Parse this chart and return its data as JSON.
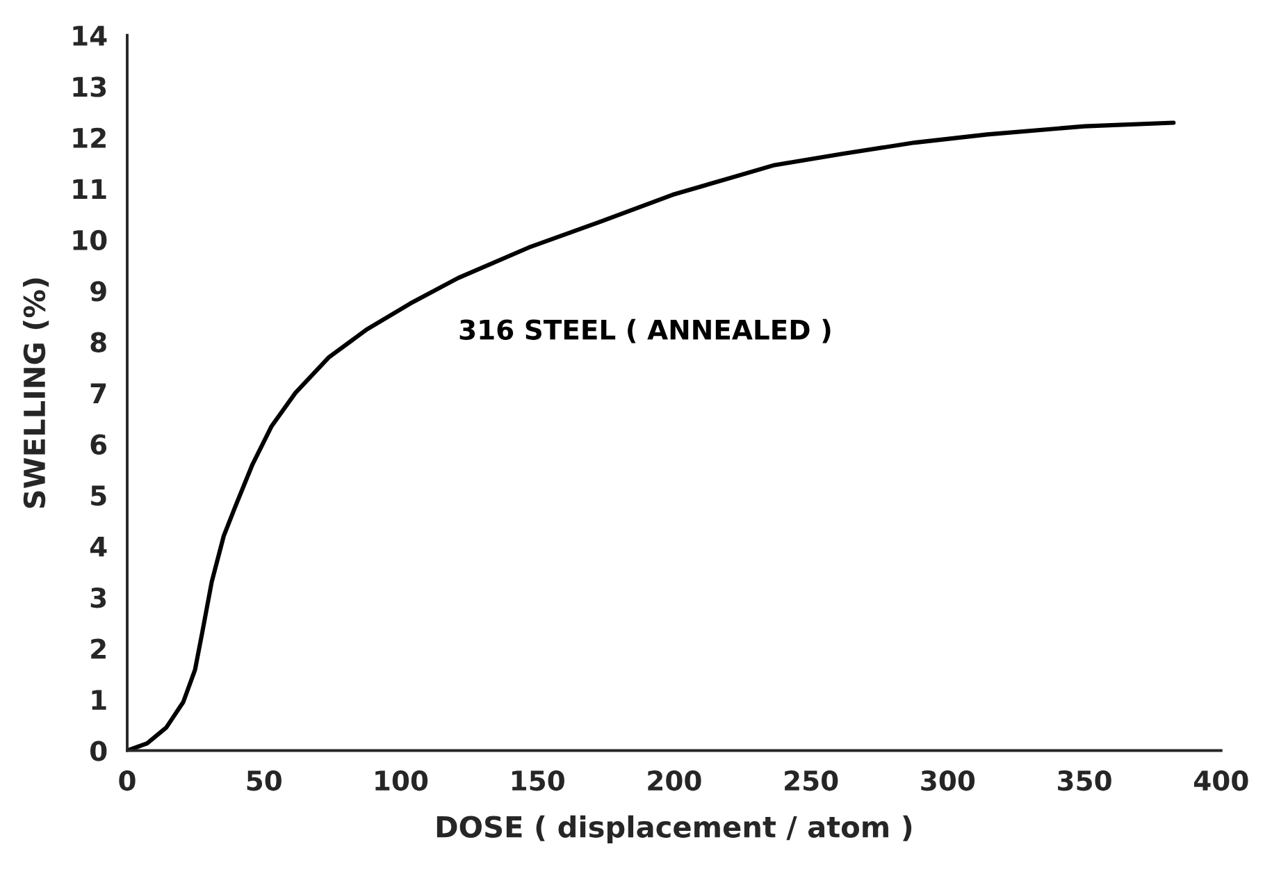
{
  "chart_data": {
    "type": "line",
    "xlabel": "DOSE ( displacement / atom )",
    "ylabel": "SWELLING (%)",
    "xlim": [
      0,
      400
    ],
    "ylim": [
      0,
      14
    ],
    "xticks": [
      0,
      50,
      100,
      150,
      200,
      250,
      300,
      350,
      400
    ],
    "yticks": [
      0,
      1,
      2,
      3,
      4,
      5,
      6,
      7,
      8,
      9,
      10,
      11,
      12,
      13,
      14
    ],
    "grid": false,
    "marker": "none",
    "line_style": "solid",
    "series": [
      {
        "name": "316 STEEL ( ANNEALED )",
        "color": "#000000",
        "x": [
          0,
          7.3,
          14.3,
          20.5,
          24.8,
          27.4,
          30.9,
          35.3,
          39.7,
          45.8,
          52.8,
          61.5,
          73.8,
          87.8,
          103.5,
          121,
          147,
          173,
          199.5,
          236.7,
          261.5,
          288,
          314.5,
          350,
          382.6
        ],
        "values": [
          0,
          0.14,
          0.45,
          0.95,
          1.58,
          2.3,
          3.3,
          4.2,
          4.8,
          5.6,
          6.35,
          7.0,
          7.7,
          8.25,
          8.75,
          9.25,
          9.85,
          10.35,
          10.88,
          11.46,
          11.68,
          11.9,
          12.06,
          12.22,
          12.29
        ]
      }
    ]
  }
}
